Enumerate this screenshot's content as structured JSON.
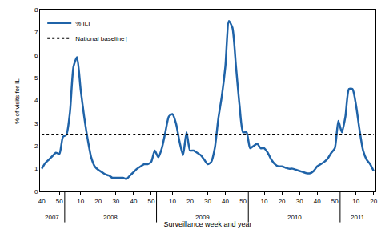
{
  "chart_data": {
    "type": "line",
    "x_label": "Surveillance week and year",
    "y_label": "% of visits for ILI",
    "categories": [
      "40",
      null,
      null,
      null,
      null,
      "50",
      null,
      null,
      null,
      null,
      null,
      "10",
      null,
      null,
      null,
      null,
      "20",
      null,
      null,
      null,
      null,
      "30",
      null,
      null,
      null,
      null,
      "40",
      null,
      null,
      null,
      null,
      "50",
      null,
      null,
      null,
      null,
      null,
      "10",
      null,
      null,
      null,
      null,
      "20",
      null,
      null,
      null,
      null,
      "30",
      null,
      null,
      null,
      null,
      "40",
      null,
      null,
      null,
      null,
      "50",
      null,
      null,
      null,
      null,
      null,
      "10",
      null,
      null,
      null,
      null,
      "20",
      null,
      null,
      null,
      null,
      "30",
      null,
      null,
      null,
      null,
      "40",
      null,
      null,
      null,
      null,
      "50",
      null,
      null,
      null,
      null,
      null,
      "10",
      null,
      null,
      null,
      null,
      "20"
    ],
    "series": [
      {
        "name": "% ILI",
        "color": "#1f63a8",
        "line_style": "solid",
        "values": [
          1.0,
          1.25,
          1.4,
          1.55,
          1.7,
          1.65,
          2.4,
          2.5,
          3.5,
          5.5,
          5.9,
          4.5,
          3.3,
          2.3,
          1.5,
          1.1,
          0.95,
          0.85,
          0.75,
          0.7,
          0.6,
          0.6,
          0.6,
          0.6,
          0.55,
          0.7,
          0.85,
          1.0,
          1.1,
          1.2,
          1.2,
          1.3,
          1.8,
          1.5,
          1.9,
          2.6,
          3.3,
          3.4,
          3.0,
          2.2,
          1.6,
          2.6,
          1.8,
          1.8,
          1.7,
          1.6,
          1.4,
          1.2,
          1.3,
          1.9,
          3.2,
          4.2,
          5.5,
          7.5,
          7.2,
          5.5,
          3.8,
          2.6,
          2.6,
          1.9,
          2.0,
          2.1,
          1.9,
          1.9,
          1.7,
          1.4,
          1.2,
          1.1,
          1.1,
          1.05,
          1.0,
          1.0,
          0.95,
          0.9,
          0.85,
          0.8,
          0.8,
          0.9,
          1.1,
          1.2,
          1.3,
          1.45,
          1.7,
          1.9,
          3.1,
          2.6,
          3.3,
          4.5,
          4.5,
          3.8,
          2.7,
          1.8,
          1.4,
          1.2,
          0.9
        ]
      },
      {
        "name": "National baseline†",
        "color": "#000000",
        "line_style": "dot",
        "values": [
          2.5,
          2.5,
          2.5,
          2.5,
          2.5,
          2.5,
          2.5,
          2.5,
          2.5,
          2.5,
          2.5,
          2.5,
          2.5,
          2.5,
          2.5,
          2.5,
          2.5,
          2.5,
          2.5,
          2.5,
          2.5,
          2.5,
          2.5,
          2.5,
          2.5,
          2.5,
          2.5,
          2.5,
          2.5,
          2.5,
          2.5,
          2.5,
          2.5,
          2.5,
          2.5,
          2.5,
          2.5,
          2.5,
          2.5,
          2.5,
          2.5,
          2.5,
          2.5,
          2.5,
          2.5,
          2.5,
          2.5,
          2.5,
          2.5,
          2.5,
          2.5,
          2.5,
          2.5,
          2.5,
          2.5,
          2.5,
          2.5,
          2.5,
          2.5,
          2.5,
          2.5,
          2.5,
          2.5,
          2.5,
          2.5,
          2.5,
          2.5,
          2.5,
          2.5,
          2.5,
          2.5,
          2.5,
          2.5,
          2.5,
          2.5,
          2.5,
          2.5,
          2.5,
          2.5,
          2.5,
          2.5,
          2.5,
          2.5,
          2.5,
          2.5,
          2.5,
          2.5,
          2.5,
          2.5,
          2.5,
          2.5,
          2.5,
          2.5,
          2.5,
          2.5
        ]
      }
    ],
    "annotations": [
      {
        "text": "2007",
        "start": 0,
        "end": 6
      },
      {
        "text": "2008",
        "start": 7,
        "end": 32
      },
      {
        "text": "2009",
        "start": 33,
        "end": 58
      },
      {
        "text": "2010",
        "start": 59,
        "end": 84
      },
      {
        "text": "2011",
        "start": 85,
        "end": 94
      }
    ],
    "ylim": [
      0,
      8
    ],
    "yticks": [
      0,
      1,
      2,
      3,
      4,
      5,
      6,
      7,
      8
    ],
    "grid": false,
    "legend": "upper left"
  }
}
